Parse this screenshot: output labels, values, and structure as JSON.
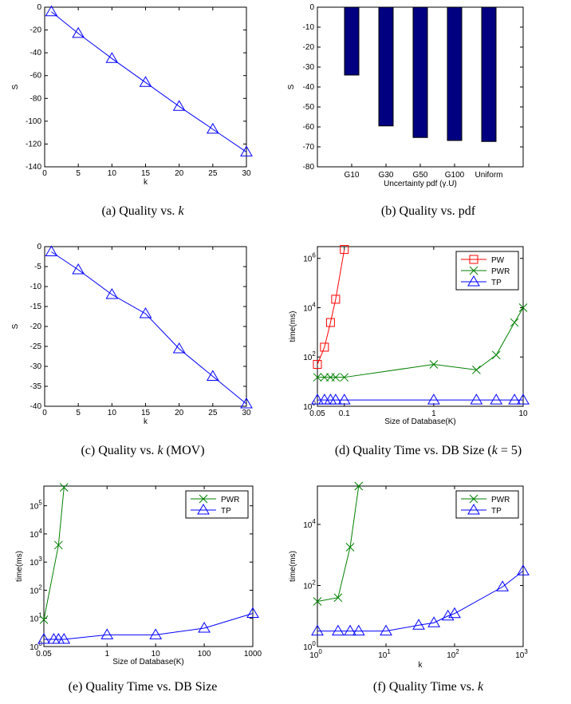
{
  "captions": {
    "a": {
      "pre": "(a)  Quality vs. ",
      "var": "k",
      "post": ""
    },
    "b": {
      "pre": "(b)  Quality vs. pdf",
      "var": "",
      "post": ""
    },
    "c": {
      "pre": "(c)  Quality vs. ",
      "var": "k",
      "post": " (MOV)"
    },
    "d": {
      "pre": "(d)  Quality Time vs. DB Size (",
      "var": "k",
      "post": " = 5)"
    },
    "e": {
      "pre": "(e)  Quality Time vs. DB Size",
      "var": "",
      "post": ""
    },
    "f": {
      "pre": "(f)  Quality Time vs. ",
      "var": "k",
      "post": ""
    }
  },
  "chart_data": [
    {
      "id": "a",
      "type": "line",
      "xlabel": "k",
      "ylabel": "S",
      "xscale": "linear",
      "yscale": "linear",
      "xlim": [
        0,
        30
      ],
      "ylim": [
        -140,
        0
      ],
      "xticks": [
        0,
        5,
        10,
        15,
        20,
        25,
        30
      ],
      "yticks": [
        0,
        -20,
        -40,
        -60,
        -80,
        -100,
        -120,
        -140
      ],
      "series": [
        {
          "color": "#0000ff",
          "marker": "triangle",
          "x": [
            1,
            5,
            10,
            15,
            20,
            25,
            30
          ],
          "y": [
            -4,
            -23,
            -45,
            -66,
            -87,
            -107,
            -127
          ]
        }
      ]
    },
    {
      "id": "b",
      "type": "bar",
      "xlabel": "Uncertainty pdf (γ.U)",
      "ylabel": "S",
      "categories": [
        "G10",
        "G30",
        "G50",
        "G100",
        "Uniform"
      ],
      "values": [
        -34,
        -59.5,
        -65.3,
        -66.8,
        -67.3
      ],
      "color": "#000080",
      "ylim": [
        -80,
        0
      ],
      "yticks": [
        0,
        -10,
        -20,
        -30,
        -40,
        -50,
        -60,
        -70,
        -80
      ]
    },
    {
      "id": "c",
      "type": "line",
      "xlabel": "k",
      "ylabel": "S",
      "xscale": "linear",
      "yscale": "linear",
      "xlim": [
        0,
        30
      ],
      "ylim": [
        -40,
        0
      ],
      "xticks": [
        0,
        5,
        10,
        15,
        20,
        25,
        30
      ],
      "yticks": [
        0,
        -5,
        -10,
        -15,
        -20,
        -25,
        -30,
        -35,
        -40
      ],
      "series": [
        {
          "color": "#0000ff",
          "marker": "triangle",
          "x": [
            1,
            5,
            10,
            15,
            20,
            25,
            30
          ],
          "y": [
            -1.3,
            -5.8,
            -12,
            -16.8,
            -25.6,
            -32.5,
            -39.4
          ]
        }
      ]
    },
    {
      "id": "d",
      "type": "line",
      "xlabel": "Size of Database(K)",
      "ylabel": "time(ms)",
      "xscale": "log",
      "yscale": "log",
      "xlim": [
        0.05,
        10
      ],
      "ylim": [
        1,
        3000000
      ],
      "xticks": [
        0.05,
        0.1,
        1,
        10
      ],
      "xticklabels": [
        "0.05",
        "0.1",
        "1",
        "10"
      ],
      "yticks": [
        1,
        100,
        10000,
        1000000
      ],
      "legend": "top-right",
      "series": [
        {
          "name": "PW",
          "color": "#ff0000",
          "marker": "square",
          "x": [
            0.05,
            0.06,
            0.07,
            0.08,
            0.1
          ],
          "y": [
            50,
            250,
            2500,
            22000,
            2300000
          ]
        },
        {
          "name": "PWR",
          "color": "#008000",
          "marker": "x",
          "x": [
            0.05,
            0.06,
            0.07,
            0.08,
            0.1,
            1,
            3,
            5,
            8,
            10
          ],
          "y": [
            15,
            15,
            15,
            15,
            15,
            50,
            30,
            120,
            2500,
            10000
          ]
        },
        {
          "name": "TP",
          "color": "#0000ff",
          "marker": "triangle",
          "x": [
            0.05,
            0.06,
            0.07,
            0.08,
            0.1,
            1,
            3,
            5,
            8,
            10
          ],
          "y": [
            1.8,
            1.8,
            1.8,
            1.8,
            1.8,
            1.8,
            1.8,
            1.8,
            1.8,
            1.8
          ]
        }
      ]
    },
    {
      "id": "e",
      "type": "line",
      "xlabel": "Size of Database(K)",
      "ylabel": "time(ms)",
      "xscale": "log",
      "yscale": "log",
      "xlim": [
        0.05,
        1000
      ],
      "ylim": [
        1,
        500000
      ],
      "xticks": [
        0.05,
        1,
        10,
        100,
        1000
      ],
      "xticklabels": [
        "0.05",
        "1",
        "10",
        "100",
        "1000"
      ],
      "yticks": [
        1,
        10,
        100,
        1000,
        10000,
        100000
      ],
      "legend": "top-right",
      "series": [
        {
          "name": "PWR",
          "color": "#008000",
          "marker": "x",
          "x": [
            0.05,
            0.1,
            0.13
          ],
          "y": [
            9,
            4000,
            450000
          ]
        },
        {
          "name": "TP",
          "color": "#0000ff",
          "marker": "triangle",
          "x": [
            0.05,
            0.08,
            0.1,
            0.13,
            1,
            10,
            100,
            1000
          ],
          "y": [
            1.8,
            1.8,
            1.8,
            1.8,
            2.6,
            2.6,
            4.5,
            15
          ]
        }
      ]
    },
    {
      "id": "f",
      "type": "line",
      "xlabel": "k",
      "ylabel": "time(ms)",
      "xscale": "log",
      "yscale": "log",
      "xlim": [
        1,
        1000
      ],
      "ylim": [
        1,
        180000
      ],
      "xticks": [
        1,
        10,
        100,
        1000
      ],
      "yticks": [
        1,
        100,
        10000
      ],
      "legend": "top-right",
      "series": [
        {
          "name": "PWR",
          "color": "#008000",
          "marker": "x",
          "x": [
            1,
            2,
            3,
            4
          ],
          "y": [
            30,
            40,
            1800,
            180000
          ]
        },
        {
          "name": "TP",
          "color": "#0000ff",
          "marker": "triangle",
          "x": [
            1,
            2,
            3,
            4,
            10,
            30,
            50,
            80,
            100,
            500,
            1000
          ],
          "y": [
            3.2,
            3.2,
            3.2,
            3.2,
            3.2,
            5,
            6,
            10,
            12,
            90,
            300
          ]
        }
      ]
    }
  ]
}
